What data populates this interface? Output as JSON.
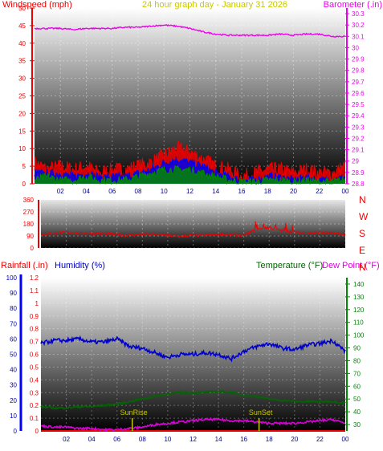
{
  "colors": {
    "wind_red": "#ee0000",
    "wind_blue": "#0000ee",
    "wind_green": "#008800",
    "barometer": "#ee00ee",
    "direction": "#ee0000",
    "rainfall": "#ee0000",
    "humidity": "#0000cc",
    "temperature": "#006600",
    "dewpoint": "#dd00dd",
    "title": "#c8c800",
    "sun": "#c8c800",
    "rain_axis": "#0000ff",
    "temp_axis": "#008800"
  },
  "header": {
    "wind_label": "Windspeed (mph)",
    "title": "24 hour graph day - January 31 2026",
    "baro_label": "Barometer (.in)"
  },
  "lower_header": {
    "rain_label": "Rainfall (.in)",
    "humidity_label": "Humidity (%)",
    "temp_label": "Temperature (°F)",
    "dew_label": "Dew Point (°F)"
  },
  "direction_letters": [
    "N",
    "W",
    "S",
    "E",
    "N"
  ],
  "sun_labels": {
    "rise": "SunRise",
    "set": "SunSet"
  },
  "chart_data": [
    {
      "type": "line",
      "title": "24 hour graph day - January 31 2026",
      "xlabel": "",
      "ylabel": "Windspeed (mph)",
      "y2label": "Barometer (.in)",
      "x_ticks": [
        "02",
        "04",
        "06",
        "08",
        "10",
        "12",
        "14",
        "16",
        "18",
        "20",
        "22",
        "00"
      ],
      "ylim": [
        0,
        50
      ],
      "y_ticks": [
        0,
        5,
        10,
        15,
        20,
        25,
        30,
        35,
        40,
        45,
        50
      ],
      "y2lim": [
        28.8,
        30.35
      ],
      "y2_ticks": [
        "28.8",
        "28.9",
        "29",
        "29.1",
        "29.2",
        "29.3",
        "29.4",
        "29.5",
        "29.6",
        "29.7",
        "29.8",
        "29.9",
        "30",
        "30.1",
        "30.2",
        "30.3"
      ],
      "grid": true,
      "series": [
        {
          "axis": "left",
          "color_key": "wind_red",
          "x": [
            0,
            1,
            2,
            3,
            4,
            5,
            6,
            7,
            8,
            9,
            10,
            11,
            12,
            13,
            14,
            15,
            16,
            17,
            18,
            19,
            20,
            21,
            22,
            23,
            24
          ],
          "values": [
            6,
            4,
            5,
            4,
            5,
            3,
            4,
            4,
            5,
            6,
            8,
            10,
            9,
            7,
            5,
            4,
            2,
            3,
            4,
            4,
            3,
            4,
            3,
            3,
            5
          ]
        },
        {
          "axis": "left",
          "color_key": "wind_blue",
          "x": [
            0,
            1,
            2,
            3,
            4,
            5,
            6,
            7,
            8,
            9,
            10,
            11,
            12,
            13,
            14,
            15,
            16,
            17,
            18,
            19,
            20,
            21,
            22,
            23,
            24
          ],
          "values": [
            3,
            3,
            3,
            2,
            3,
            2,
            2,
            2,
            3,
            4,
            6,
            7,
            6,
            5,
            3,
            2,
            1,
            1,
            2,
            2,
            1,
            2,
            1,
            1,
            2
          ]
        },
        {
          "axis": "left",
          "color_key": "wind_green",
          "x": [
            0,
            1,
            2,
            3,
            4,
            5,
            6,
            7,
            8,
            9,
            10,
            11,
            12,
            13,
            14,
            15,
            16,
            17,
            18,
            19,
            20,
            21,
            22,
            23,
            24
          ],
          "values": [
            1,
            2,
            1,
            1,
            2,
            1,
            1,
            1,
            2,
            3,
            4,
            4,
            4,
            3,
            2,
            1,
            0.5,
            0.5,
            1,
            1,
            0.5,
            1,
            0.5,
            0.5,
            1
          ]
        },
        {
          "axis": "right",
          "color_key": "barometer",
          "x": [
            0,
            1,
            2,
            3,
            4,
            5,
            6,
            7,
            8,
            9,
            10,
            11,
            12,
            13,
            14,
            15,
            16,
            17,
            18,
            19,
            20,
            21,
            22,
            23,
            24
          ],
          "values": [
            30.17,
            30.17,
            30.17,
            30.16,
            30.17,
            30.17,
            30.17,
            30.18,
            30.18,
            30.19,
            30.2,
            30.19,
            30.17,
            30.14,
            30.12,
            30.11,
            30.11,
            30.11,
            30.11,
            30.12,
            30.11,
            30.12,
            30.12,
            30.1,
            30.1
          ]
        }
      ]
    },
    {
      "type": "line",
      "title": "",
      "ylabel": "",
      "ylim": [
        0,
        360
      ],
      "y_ticks": [
        0,
        90,
        180,
        270,
        360
      ],
      "grid": true,
      "series": [
        {
          "color_key": "direction",
          "x": [
            0,
            1,
            2,
            3,
            4,
            5,
            6,
            7,
            8,
            9,
            10,
            11,
            12,
            13,
            14,
            15,
            16,
            17,
            18,
            19,
            20,
            21,
            22,
            23,
            24
          ],
          "values": [
            100,
            110,
            115,
            108,
            110,
            105,
            100,
            95,
            100,
            100,
            95,
            85,
            95,
            95,
            100,
            100,
            95,
            140,
            150,
            130,
            120,
            110,
            115,
            110,
            100
          ]
        }
      ]
    },
    {
      "type": "line",
      "title": "",
      "xlabel": "",
      "ylabel": "Rainfall (.in)",
      "y2label": "Temperature (°F)",
      "x_ticks": [
        "02",
        "04",
        "06",
        "08",
        "10",
        "12",
        "14",
        "16",
        "18",
        "20",
        "22",
        "00"
      ],
      "ylim": [
        0,
        1.2
      ],
      "y_ticks": [
        "0",
        "0.1",
        "0.2",
        "0.3",
        "0.4",
        "0.5",
        "0.6",
        "0.7",
        "0.8",
        "0.9",
        "1",
        "1.1",
        "1.2"
      ],
      "ylim_humidity": [
        0,
        100
      ],
      "humidity_ticks": [
        0,
        10,
        20,
        30,
        40,
        50,
        60,
        70,
        80,
        90,
        100
      ],
      "y2lim": [
        25,
        145
      ],
      "y2_ticks": [
        30,
        40,
        50,
        60,
        70,
        80,
        90,
        100,
        110,
        120,
        130,
        140
      ],
      "grid": true,
      "series": [
        {
          "axis": "left",
          "color_key": "rainfall",
          "x": [
            0,
            24
          ],
          "values": [
            0,
            0
          ]
        },
        {
          "axis": "humidity",
          "color_key": "humidity",
          "x": [
            0,
            1,
            2,
            3,
            4,
            5,
            6,
            7,
            8,
            9,
            10,
            11,
            12,
            13,
            14,
            15,
            16,
            17,
            18,
            19,
            20,
            21,
            22,
            23,
            24
          ],
          "values": [
            57,
            59,
            59,
            60,
            58,
            58,
            60,
            55,
            54,
            51,
            48,
            50,
            50,
            51,
            50,
            47,
            52,
            55,
            57,
            54,
            53,
            56,
            57,
            59,
            52
          ]
        },
        {
          "axis": "right",
          "color_key": "temperature",
          "x": [
            0,
            1,
            2,
            3,
            4,
            5,
            6,
            7,
            8,
            9,
            10,
            11,
            12,
            13,
            14,
            15,
            16,
            17,
            18,
            19,
            20,
            21,
            22,
            23,
            24
          ],
          "values": [
            44,
            43,
            43,
            44,
            44,
            45,
            46,
            48,
            50,
            52,
            54,
            55,
            55,
            55,
            56,
            55,
            53,
            52,
            50,
            49,
            48,
            48,
            48,
            48,
            47
          ]
        },
        {
          "axis": "right",
          "color_key": "dewpoint",
          "x": [
            0,
            1,
            2,
            3,
            4,
            5,
            6,
            7,
            8,
            9,
            10,
            11,
            12,
            13,
            14,
            15,
            16,
            17,
            18,
            19,
            20,
            21,
            22,
            23,
            24
          ],
          "values": [
            29,
            28,
            28,
            27,
            27,
            26,
            26,
            27,
            28,
            30,
            31,
            32,
            33,
            34,
            34,
            33,
            33,
            32,
            31,
            31,
            31,
            32,
            33,
            34,
            31
          ]
        }
      ],
      "sun_events": [
        {
          "label_key": "rise",
          "hour": 7.2
        },
        {
          "label_key": "set",
          "hour": 17.2
        }
      ]
    }
  ]
}
